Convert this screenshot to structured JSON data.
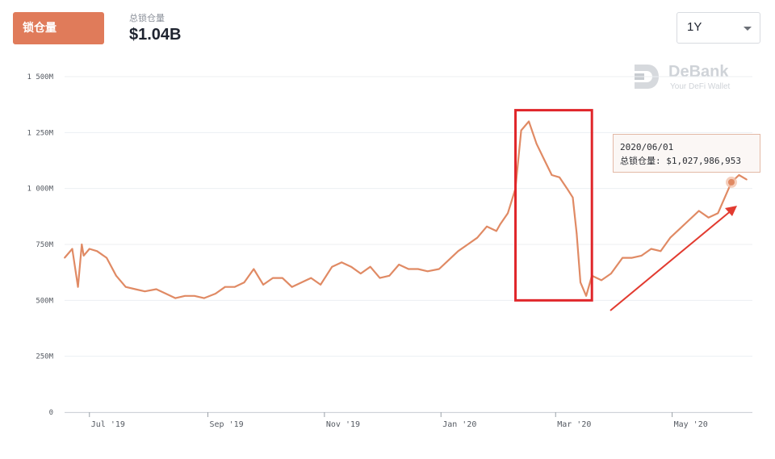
{
  "header": {
    "tab_label": "锁仓量",
    "metric_label": "总锁仓量",
    "metric_value": "$1.04B",
    "range_value": "1Y"
  },
  "logo": {
    "name": "DeBank",
    "tagline": "Your DeFi Wallet"
  },
  "tooltip": {
    "date": "2020/06/01",
    "label": "总锁仓量:",
    "value": "$1,027,986,953"
  },
  "colors": {
    "accent": "#e07b5a",
    "line": "#e08a64",
    "highlight_box": "#e0262a",
    "arrow": "#e23b30",
    "grid": "#eceff2"
  },
  "chart_data": {
    "type": "line",
    "title": "",
    "xlabel": "",
    "ylabel": "",
    "ylim": [
      0,
      1500
    ],
    "y_ticks": [
      0,
      250,
      500,
      750,
      1000,
      1250,
      1500
    ],
    "y_tick_labels": [
      "0",
      "250M",
      "500M",
      "750M",
      "1 000M",
      "1 250M",
      "1 500M"
    ],
    "x_ticks": [
      "2019-07-01",
      "2019-09-01",
      "2019-11-01",
      "2020-01-01",
      "2020-03-01",
      "2020-05-01"
    ],
    "x_tick_labels": [
      "Jul '19",
      "Sep '19",
      "Nov '19",
      "Jan '20",
      "Mar '20",
      "May '20"
    ],
    "x_range": [
      "2019-06-18",
      "2020-06-12"
    ],
    "grid": true,
    "series": [
      {
        "x": [
          "2019-06-18",
          "2019-06-22",
          "2019-06-25",
          "2019-06-27",
          "2019-06-28",
          "2019-07-01",
          "2019-07-05",
          "2019-07-10",
          "2019-07-15",
          "2019-07-20",
          "2019-07-25",
          "2019-07-30",
          "2019-08-05",
          "2019-08-10",
          "2019-08-15",
          "2019-08-20",
          "2019-08-25",
          "2019-08-30",
          "2019-09-05",
          "2019-09-10",
          "2019-09-15",
          "2019-09-20",
          "2019-09-25",
          "2019-09-30",
          "2019-10-05",
          "2019-10-10",
          "2019-10-15",
          "2019-10-20",
          "2019-10-25",
          "2019-10-30",
          "2019-11-05",
          "2019-11-10",
          "2019-11-15",
          "2019-11-20",
          "2019-11-25",
          "2019-11-30",
          "2019-12-05",
          "2019-12-10",
          "2019-12-15",
          "2019-12-20",
          "2019-12-25",
          "2019-12-31",
          "2020-01-05",
          "2020-01-10",
          "2020-01-15",
          "2020-01-20",
          "2020-01-25",
          "2020-01-30",
          "2020-02-01",
          "2020-02-05",
          "2020-02-09",
          "2020-02-12",
          "2020-02-16",
          "2020-02-20",
          "2020-02-24",
          "2020-02-28",
          "2020-03-03",
          "2020-03-07",
          "2020-03-10",
          "2020-03-12",
          "2020-03-14",
          "2020-03-17",
          "2020-03-20",
          "2020-03-25",
          "2020-03-30",
          "2020-04-05",
          "2020-04-10",
          "2020-04-15",
          "2020-04-20",
          "2020-04-25",
          "2020-04-30",
          "2020-05-05",
          "2020-05-10",
          "2020-05-15",
          "2020-05-20",
          "2020-05-25",
          "2020-06-01",
          "2020-06-05",
          "2020-06-09"
        ],
        "values": [
          690,
          730,
          560,
          750,
          700,
          730,
          720,
          690,
          610,
          560,
          550,
          540,
          550,
          530,
          510,
          520,
          520,
          510,
          530,
          560,
          560,
          580,
          640,
          570,
          600,
          600,
          560,
          580,
          600,
          570,
          650,
          670,
          650,
          620,
          650,
          600,
          610,
          660,
          640,
          640,
          630,
          640,
          680,
          720,
          750,
          780,
          830,
          810,
          840,
          890,
          1000,
          1260,
          1300,
          1200,
          1130,
          1060,
          1050,
          1000,
          960,
          800,
          580,
          520,
          610,
          590,
          620,
          690,
          690,
          700,
          730,
          720,
          780,
          820,
          860,
          900,
          870,
          890,
          1028,
          1060,
          1040
        ]
      }
    ],
    "annotations": {
      "highlight_range": [
        "2020-02-09",
        "2020-03-20"
      ],
      "highlight_value_range": [
        500,
        1350
      ],
      "highlight_point": {
        "x": "2020-06-01",
        "y": 1028
      }
    }
  }
}
